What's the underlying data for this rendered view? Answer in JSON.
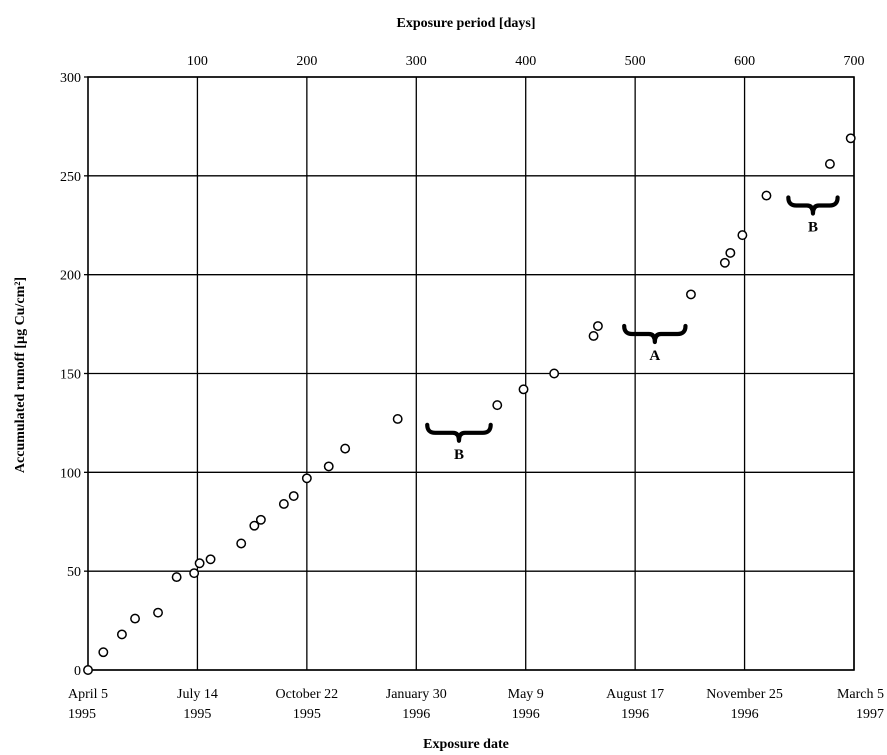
{
  "chart_data": {
    "type": "scatter",
    "title": "",
    "xlabel": "Exposure date",
    "x2label": "Exposure period [days]",
    "ylabel": "Accumulated runoff [µg Cu/cm²]",
    "xlim": [
      0,
      700
    ],
    "ylim": [
      0,
      300
    ],
    "grid": true,
    "y_ticks": [
      "0",
      "50",
      "100",
      "150",
      "200",
      "250",
      "300"
    ],
    "top_ticks": [
      "100",
      "200",
      "300",
      "400",
      "500",
      "600",
      "700"
    ],
    "bottom_ticks": [
      {
        "line1": "April 5",
        "line2": "1995"
      },
      {
        "line1": "July 14",
        "line2": "1995"
      },
      {
        "line1": "October 22",
        "line2": "1995"
      },
      {
        "line1": "January 30",
        "line2": "1996"
      },
      {
        "line1": "May 9",
        "line2": "1996"
      },
      {
        "line1": "August 17",
        "line2": "1996"
      },
      {
        "line1": "November 25",
        "line2": "1996"
      },
      {
        "line1": "March 5",
        "line2": "1997"
      }
    ],
    "series": [
      {
        "points": [
          [
            0,
            0
          ],
          [
            14,
            9
          ],
          [
            31,
            18
          ],
          [
            43,
            26
          ],
          [
            64,
            29
          ],
          [
            81,
            47
          ],
          [
            97,
            49
          ],
          [
            102,
            54
          ],
          [
            112,
            56
          ],
          [
            140,
            64
          ],
          [
            152,
            73
          ],
          [
            158,
            76
          ],
          [
            179,
            84
          ],
          [
            188,
            88
          ],
          [
            200,
            97
          ],
          [
            220,
            103
          ],
          [
            235,
            112
          ],
          [
            283,
            127
          ],
          [
            374,
            134
          ],
          [
            398,
            142
          ],
          [
            426,
            150
          ],
          [
            462,
            169
          ],
          [
            466,
            174
          ],
          [
            551,
            190
          ],
          [
            582,
            206
          ],
          [
            587,
            211
          ],
          [
            598,
            220
          ],
          [
            620,
            240
          ],
          [
            678,
            256
          ],
          [
            697,
            269
          ]
        ]
      }
    ],
    "annotations": [
      {
        "label": "B",
        "x_from": 310,
        "x_to": 368,
        "y": 120
      },
      {
        "label": "A",
        "x_from": 490,
        "x_to": 546,
        "y": 170
      },
      {
        "label": "B",
        "x_from": 640,
        "x_to": 685,
        "y": 235
      }
    ]
  }
}
